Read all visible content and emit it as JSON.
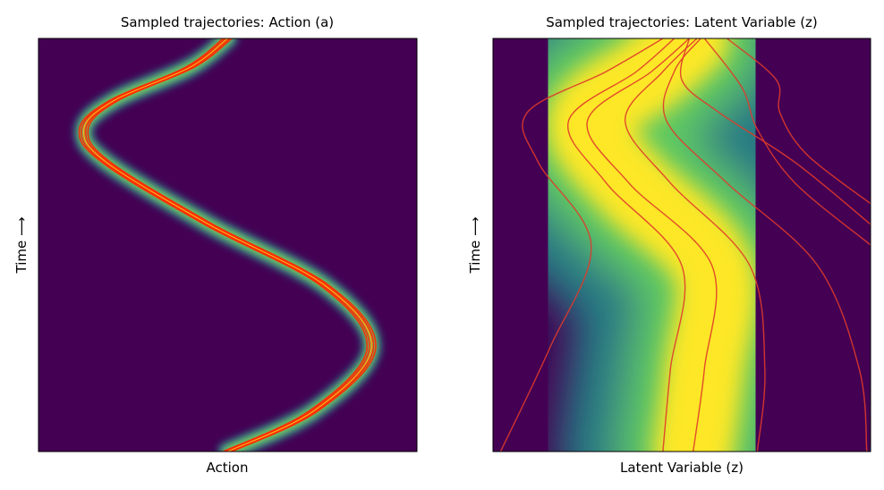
{
  "chart_data": [
    {
      "type": "heatmap",
      "title": "Sampled trajectories: Action (a)",
      "xlabel": "Action",
      "ylabel": "Time ⟶",
      "colormap": "viridis",
      "background_color": "#440154",
      "trajectory_color": "#ff2a00",
      "grid": false,
      "ticks": false,
      "series": [
        {
          "values": [
            {
              "t": 0.0,
              "x": 0.5
            },
            {
              "t": 0.1,
              "x": 0.73
            },
            {
              "t": 0.25,
              "x": 0.88
            },
            {
              "t": 0.4,
              "x": 0.76
            },
            {
              "t": 0.55,
              "x": 0.45
            },
            {
              "t": 0.7,
              "x": 0.18
            },
            {
              "t": 0.78,
              "x": 0.12
            },
            {
              "t": 0.85,
              "x": 0.2
            },
            {
              "t": 0.93,
              "x": 0.4
            },
            {
              "t": 1.0,
              "x": 0.5
            }
          ]
        }
      ]
    },
    {
      "type": "heatmap",
      "title": "Sampled trajectories: Latent Variable (z)",
      "xlabel": "Latent Variable (z)",
      "ylabel": "Time ⟶",
      "colormap": "viridis",
      "background_color": "#440154",
      "trajectory_color": "#e03a2a",
      "grid": false,
      "ticks": false,
      "series": [
        {
          "values": [
            {
              "t": 0,
              "x": 0.02
            },
            {
              "t": 0.25,
              "x": 0.15
            },
            {
              "t": 0.5,
              "x": 0.26
            },
            {
              "t": 0.7,
              "x": 0.12
            },
            {
              "t": 0.82,
              "x": 0.09
            },
            {
              "t": 0.92,
              "x": 0.3
            },
            {
              "t": 1,
              "x": 0.45
            }
          ]
        },
        {
          "values": [
            {
              "t": 0,
              "x": 0.45
            },
            {
              "t": 0.2,
              "x": 0.47
            },
            {
              "t": 0.45,
              "x": 0.5
            },
            {
              "t": 0.65,
              "x": 0.3
            },
            {
              "t": 0.8,
              "x": 0.2
            },
            {
              "t": 0.92,
              "x": 0.38
            },
            {
              "t": 1,
              "x": 0.48
            }
          ]
        },
        {
          "values": [
            {
              "t": 0,
              "x": 0.53
            },
            {
              "t": 0.2,
              "x": 0.56
            },
            {
              "t": 0.45,
              "x": 0.58
            },
            {
              "t": 0.65,
              "x": 0.36
            },
            {
              "t": 0.8,
              "x": 0.25
            },
            {
              "t": 0.92,
              "x": 0.42
            },
            {
              "t": 1,
              "x": 0.52
            }
          ]
        },
        {
          "values": [
            {
              "t": 0,
              "x": 0.7
            },
            {
              "t": 0.2,
              "x": 0.72
            },
            {
              "t": 0.45,
              "x": 0.68
            },
            {
              "t": 0.65,
              "x": 0.47
            },
            {
              "t": 0.8,
              "x": 0.35
            },
            {
              "t": 0.92,
              "x": 0.45
            },
            {
              "t": 1,
              "x": 0.54
            }
          ]
        },
        {
          "values": [
            {
              "t": 0,
              "x": 0.99
            },
            {
              "t": 0.2,
              "x": 0.97
            },
            {
              "t": 0.45,
              "x": 0.86
            },
            {
              "t": 0.65,
              "x": 0.62
            },
            {
              "t": 0.8,
              "x": 0.46
            },
            {
              "t": 0.92,
              "x": 0.48
            },
            {
              "t": 1,
              "x": 0.55
            }
          ]
        },
        {
          "values": [
            {
              "t": 0.55,
              "x": 1.0
            },
            {
              "t": 0.7,
              "x": 0.8
            },
            {
              "t": 0.82,
              "x": 0.6
            },
            {
              "t": 0.9,
              "x": 0.5
            },
            {
              "t": 1,
              "x": 0.52
            }
          ]
        },
        {
          "values": [
            {
              "t": 0.5,
              "x": 1.0
            },
            {
              "t": 0.65,
              "x": 0.8
            },
            {
              "t": 0.78,
              "x": 0.7
            },
            {
              "t": 0.88,
              "x": 0.66
            },
            {
              "t": 1,
              "x": 0.56
            }
          ]
        },
        {
          "values": [
            {
              "t": 0.6,
              "x": 1.0
            },
            {
              "t": 0.72,
              "x": 0.83
            },
            {
              "t": 0.82,
              "x": 0.76
            },
            {
              "t": 0.9,
              "x": 0.75
            },
            {
              "t": 1,
              "x": 0.62
            }
          ]
        }
      ]
    }
  ]
}
